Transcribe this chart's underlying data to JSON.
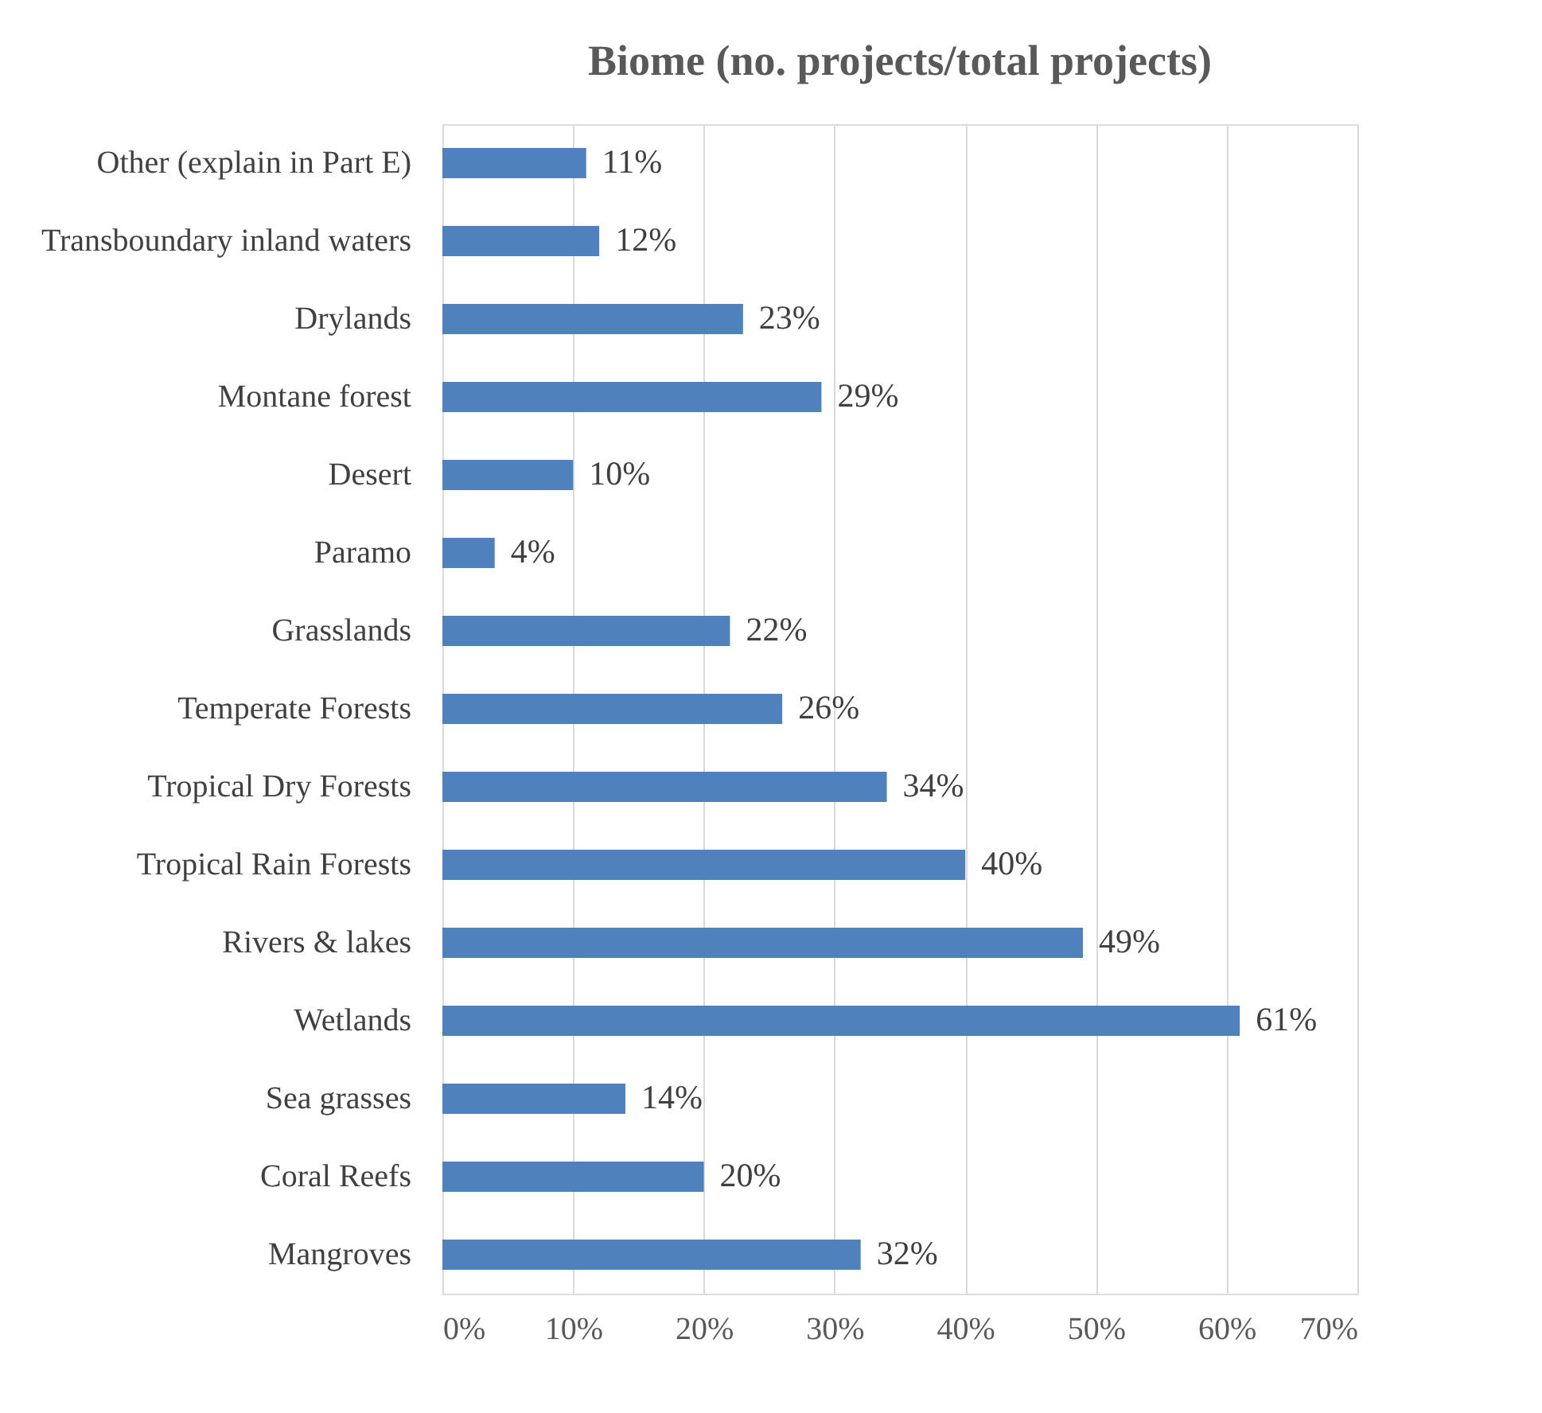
{
  "chart_data": {
    "type": "bar",
    "orientation": "horizontal",
    "title": "Biome (no. projects/total projects)",
    "categories": [
      "Other (explain in Part E)",
      "Transboundary inland waters",
      "Drylands",
      "Montane forest",
      "Desert",
      "Paramo",
      "Grasslands ",
      "Temperate Forests",
      "Tropical Dry Forests",
      "Tropical Rain Forests",
      "Rivers & lakes",
      "Wetlands",
      "Sea grasses",
      "Coral Reefs",
      "Mangroves"
    ],
    "values": [
      11,
      12,
      23,
      29,
      10,
      4,
      22,
      26,
      34,
      40,
      49,
      61,
      14,
      20,
      32
    ],
    "value_labels": [
      "11%",
      "12%",
      "23%",
      "29%",
      "10%",
      "4%",
      "22%",
      "26%",
      "34%",
      "40%",
      "49%",
      "61%",
      "14%",
      "20%",
      "32%"
    ],
    "color": "#4f81bd",
    "xlim": [
      0,
      70
    ],
    "xticks": [
      {
        "value": 0,
        "label": "0%"
      },
      {
        "value": 10,
        "label": "10%"
      },
      {
        "value": 20,
        "label": "20%"
      },
      {
        "value": 30,
        "label": "30%"
      },
      {
        "value": 40,
        "label": "40%"
      },
      {
        "value": 50,
        "label": "50%"
      },
      {
        "value": 60,
        "label": "60%"
      },
      {
        "value": 70,
        "label": "70%"
      }
    ],
    "grid": "x"
  }
}
